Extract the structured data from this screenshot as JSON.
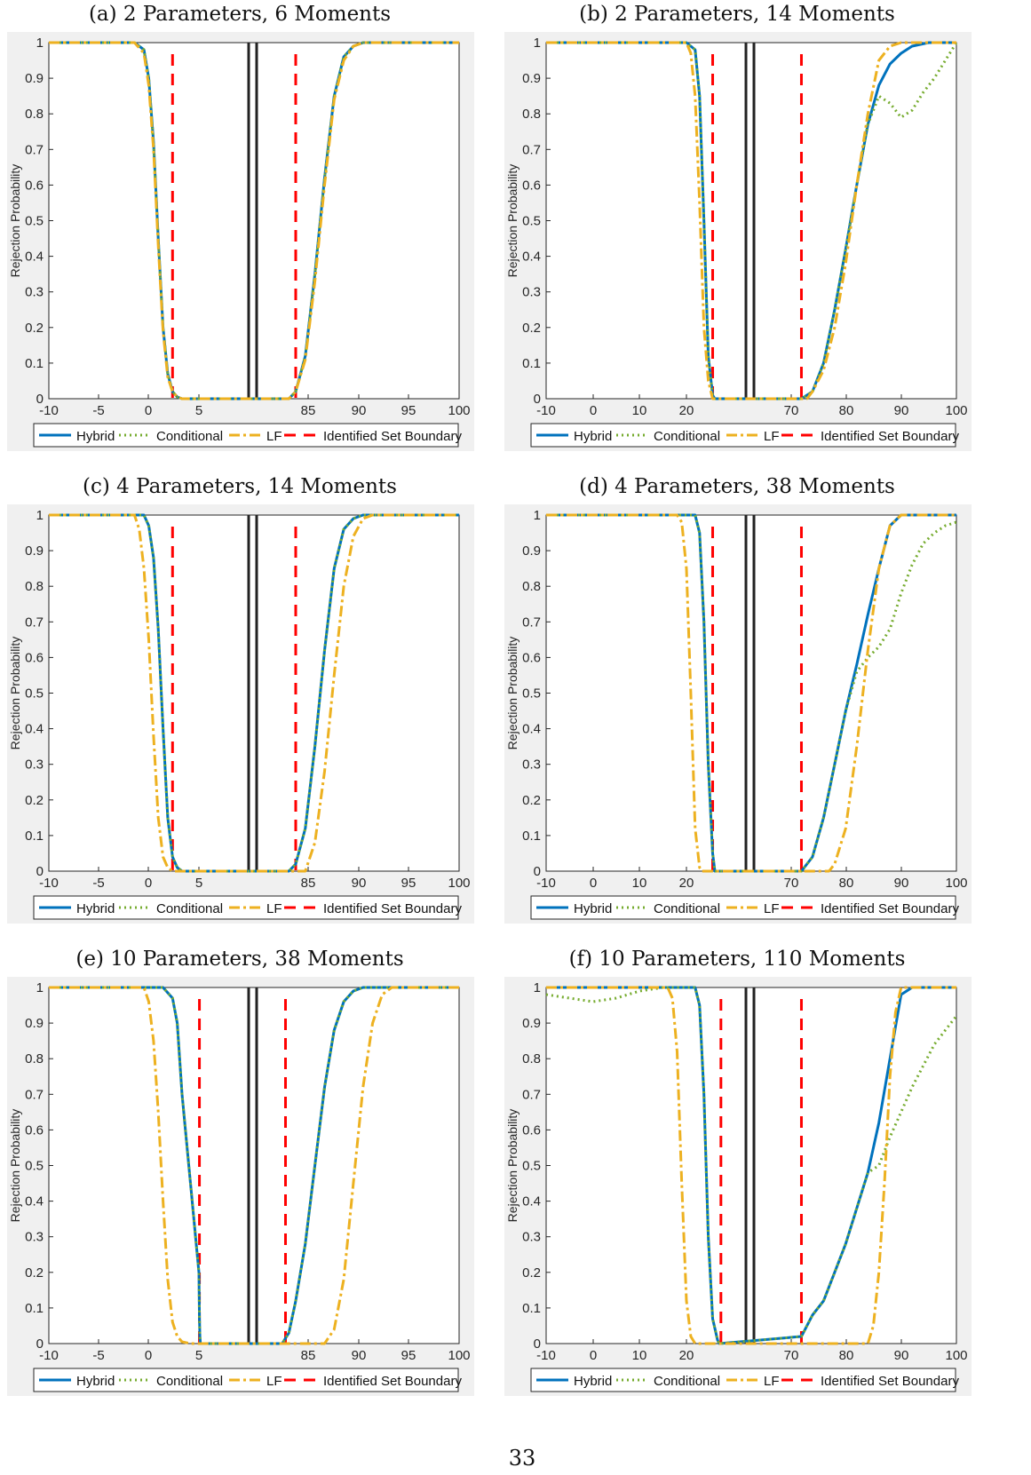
{
  "page_number": "33",
  "legend": [
    {
      "label": "Hybrid",
      "color": "#0072BD",
      "style": "solid"
    },
    {
      "label": "Conditional",
      "color": "#77AC30",
      "style": "dotted"
    },
    {
      "label": "LF",
      "color": "#EDB120",
      "style": "dashdot"
    },
    {
      "label": "Identified Set Boundary",
      "color": "#FF0000",
      "style": "dashed"
    }
  ],
  "true_value_line_color": "#222222",
  "chart_data": [
    {
      "type": "line",
      "title": "(a) 2 Parameters, 6 Moments",
      "ylabel": "Rejection Probability",
      "xlabel": "",
      "x_tick_labels": [
        "-10",
        "-5",
        "0",
        "5",
        "85",
        "90",
        "95",
        "100"
      ],
      "y_tick_labels": [
        "0",
        "0.1",
        "0.2",
        "0.3",
        "0.4",
        "0.5",
        "0.6",
        "0.7",
        "0.8",
        "0.9",
        "1"
      ],
      "ylim": [
        0,
        1
      ],
      "identified_set_boundary": [
        3,
        83
      ],
      "series": [
        {
          "name": "Hybrid",
          "x": [
            -10,
            -1,
            0,
            0.5,
            1,
            1.5,
            2,
            2.5,
            3,
            3.5,
            4,
            82,
            83,
            84,
            85,
            86,
            87,
            88,
            89,
            90,
            100
          ],
          "y": [
            1,
            1,
            0.98,
            0.9,
            0.72,
            0.45,
            0.2,
            0.07,
            0.02,
            0.005,
            0,
            0,
            0.02,
            0.12,
            0.35,
            0.62,
            0.85,
            0.96,
            0.99,
            1,
            1
          ]
        },
        {
          "name": "Conditional",
          "x": [
            -10,
            -1,
            0,
            0.5,
            1,
            1.5,
            2,
            2.5,
            3,
            3.5,
            4,
            82,
            83,
            84,
            85,
            86,
            87,
            88,
            89,
            90,
            100
          ],
          "y": [
            1,
            1,
            0.98,
            0.9,
            0.72,
            0.45,
            0.2,
            0.07,
            0.02,
            0.005,
            0,
            0,
            0.02,
            0.12,
            0.35,
            0.62,
            0.85,
            0.96,
            0.99,
            1,
            1
          ]
        },
        {
          "name": "LF",
          "x": [
            -10,
            -1,
            0,
            0.5,
            1,
            1.5,
            2,
            2.5,
            3,
            3.5,
            4,
            82,
            83,
            84,
            85,
            86,
            87,
            88,
            89,
            90,
            100
          ],
          "y": [
            1,
            1,
            0.97,
            0.88,
            0.7,
            0.43,
            0.19,
            0.06,
            0.02,
            0.005,
            0,
            0,
            0.02,
            0.11,
            0.33,
            0.6,
            0.84,
            0.95,
            0.99,
            1,
            1
          ]
        }
      ]
    },
    {
      "type": "line",
      "title": "(b) 2 Parameters, 14 Moments",
      "ylabel": "Rejection Probability",
      "xlabel": "",
      "x_tick_labels": [
        "-10",
        "0",
        "10",
        "20",
        "70",
        "80",
        "90",
        "100"
      ],
      "y_tick_labels": [
        "0",
        "0.1",
        "0.2",
        "0.3",
        "0.4",
        "0.5",
        "0.6",
        "0.7",
        "0.8",
        "0.9",
        "1"
      ],
      "ylim": [
        0,
        1
      ],
      "identified_set_boundary": [
        26,
        72
      ],
      "series": [
        {
          "name": "Hybrid",
          "x": [
            -10,
            20,
            22,
            23,
            24,
            25,
            26,
            26.5,
            72,
            74,
            76,
            78,
            80,
            82,
            84,
            86,
            88,
            90,
            92,
            95,
            100
          ],
          "y": [
            1,
            1,
            0.98,
            0.85,
            0.5,
            0.12,
            0.01,
            0,
            0,
            0.02,
            0.1,
            0.25,
            0.42,
            0.6,
            0.77,
            0.88,
            0.94,
            0.97,
            0.99,
            1,
            1
          ]
        },
        {
          "name": "Conditional",
          "x": [
            -10,
            20,
            22,
            23,
            24,
            25,
            26,
            26.5,
            72,
            74,
            76,
            78,
            80,
            82,
            84,
            86,
            88,
            90,
            92,
            94,
            96,
            98,
            100
          ],
          "y": [
            1,
            1,
            0.98,
            0.85,
            0.5,
            0.12,
            0.01,
            0,
            0,
            0.02,
            0.1,
            0.25,
            0.42,
            0.6,
            0.77,
            0.85,
            0.83,
            0.79,
            0.81,
            0.86,
            0.9,
            0.95,
            1
          ]
        },
        {
          "name": "LF",
          "x": [
            -10,
            20,
            21,
            22,
            23,
            24,
            25,
            26,
            73,
            74,
            76,
            78,
            80,
            82,
            84,
            86,
            88,
            90,
            100
          ],
          "y": [
            1,
            1,
            0.97,
            0.85,
            0.55,
            0.2,
            0.05,
            0,
            0,
            0.02,
            0.08,
            0.2,
            0.38,
            0.6,
            0.8,
            0.95,
            0.99,
            1,
            1
          ]
        }
      ]
    },
    {
      "type": "line",
      "title": "(c) 4 Parameters, 14 Moments",
      "ylabel": "Rejection Probability",
      "xlabel": "",
      "x_tick_labels": [
        "-10",
        "-5",
        "0",
        "5",
        "85",
        "90",
        "95",
        "100"
      ],
      "y_tick_labels": [
        "0",
        "0.1",
        "0.2",
        "0.3",
        "0.4",
        "0.5",
        "0.6",
        "0.7",
        "0.8",
        "0.9",
        "1"
      ],
      "ylim": [
        0,
        1
      ],
      "identified_set_boundary": [
        3,
        83
      ],
      "series": [
        {
          "name": "Hybrid",
          "x": [
            -10,
            0,
            0.5,
            1,
            1.5,
            2,
            2.5,
            3,
            3.5,
            4,
            82,
            83,
            84,
            85,
            86,
            87,
            88,
            89,
            90,
            100
          ],
          "y": [
            1,
            1,
            0.97,
            0.88,
            0.68,
            0.4,
            0.15,
            0.04,
            0.01,
            0,
            0,
            0.02,
            0.12,
            0.35,
            0.62,
            0.85,
            0.96,
            0.99,
            1,
            1
          ]
        },
        {
          "name": "Conditional",
          "x": [
            -10,
            0,
            0.5,
            1,
            1.5,
            2,
            2.5,
            3,
            3.5,
            4,
            82,
            83,
            84,
            85,
            86,
            87,
            88,
            89,
            90,
            100
          ],
          "y": [
            1,
            1,
            0.97,
            0.88,
            0.68,
            0.4,
            0.15,
            0.04,
            0.01,
            0,
            0,
            0.02,
            0.12,
            0.35,
            0.62,
            0.85,
            0.96,
            0.99,
            1,
            1
          ]
        },
        {
          "name": "LF",
          "x": [
            -10,
            -1,
            -0.5,
            0,
            0.5,
            1,
            1.5,
            2,
            2.5,
            3,
            84,
            85,
            86,
            87,
            88,
            89,
            90,
            91,
            92,
            100
          ],
          "y": [
            1,
            1,
            0.96,
            0.85,
            0.65,
            0.38,
            0.15,
            0.04,
            0.01,
            0,
            0,
            0.08,
            0.28,
            0.55,
            0.8,
            0.94,
            0.99,
            1,
            1,
            1
          ]
        }
      ]
    },
    {
      "type": "line",
      "title": "(d) 4 Parameters, 38 Moments",
      "ylabel": "Rejection Probability",
      "xlabel": "",
      "x_tick_labels": [
        "-10",
        "0",
        "10",
        "20",
        "70",
        "80",
        "90",
        "100"
      ],
      "y_tick_labels": [
        "0",
        "0.1",
        "0.2",
        "0.3",
        "0.4",
        "0.5",
        "0.6",
        "0.7",
        "0.8",
        "0.9",
        "1"
      ],
      "ylim": [
        0,
        1
      ],
      "identified_set_boundary": [
        26,
        72
      ],
      "series": [
        {
          "name": "Hybrid",
          "x": [
            -10,
            22,
            23,
            24,
            25,
            26,
            26.5,
            72,
            74,
            76,
            78,
            80,
            82,
            84,
            86,
            88,
            90,
            92,
            100
          ],
          "y": [
            1,
            1,
            0.95,
            0.7,
            0.3,
            0.05,
            0,
            0,
            0.04,
            0.15,
            0.3,
            0.45,
            0.58,
            0.72,
            0.85,
            0.97,
            1,
            1,
            1
          ]
        },
        {
          "name": "Conditional",
          "x": [
            -10,
            22,
            23,
            24,
            25,
            26,
            26.5,
            72,
            74,
            76,
            78,
            80,
            82,
            84,
            86,
            88,
            90,
            92,
            94,
            96,
            98,
            100
          ],
          "y": [
            1,
            1,
            0.95,
            0.7,
            0.3,
            0.05,
            0,
            0,
            0.04,
            0.15,
            0.3,
            0.45,
            0.56,
            0.6,
            0.63,
            0.68,
            0.78,
            0.86,
            0.92,
            0.95,
            0.97,
            0.98
          ]
        },
        {
          "name": "LF",
          "x": [
            -10,
            18,
            19,
            20,
            21,
            22,
            23,
            23.5,
            77,
            78,
            80,
            82,
            84,
            86,
            88,
            90,
            100
          ],
          "y": [
            1,
            1,
            0.98,
            0.85,
            0.5,
            0.12,
            0.01,
            0,
            0,
            0.02,
            0.12,
            0.35,
            0.62,
            0.85,
            0.97,
            1,
            1
          ]
        }
      ]
    },
    {
      "type": "line",
      "title": "(e) 10 Parameters, 38 Moments",
      "ylabel": "Rejection Probability",
      "xlabel": "",
      "x_tick_labels": [
        "-10",
        "-5",
        "0",
        "5",
        "85",
        "90",
        "95",
        "100"
      ],
      "y_tick_labels": [
        "0",
        "0.1",
        "0.2",
        "0.3",
        "0.4",
        "0.5",
        "0.6",
        "0.7",
        "0.8",
        "0.9",
        "1"
      ],
      "ylim": [
        0,
        1
      ],
      "identified_set_boundary": [
        5.5,
        81.5
      ],
      "series": [
        {
          "name": "Hybrid",
          "x": [
            -10,
            2,
            3,
            3.5,
            4,
            4.5,
            5,
            5.5,
            6,
            6.5,
            81,
            82,
            83,
            84,
            85,
            86,
            87,
            88,
            89,
            90,
            100
          ],
          "y": [
            1,
            1,
            0.97,
            0.9,
            0.7,
            0.45,
            0.2,
            0.07,
            0.02,
            0,
            0,
            0.03,
            0.12,
            0.28,
            0.5,
            0.72,
            0.88,
            0.96,
            0.99,
            1,
            1
          ]
        },
        {
          "name": "Conditional",
          "x": [
            -10,
            2,
            3,
            3.5,
            4,
            4.5,
            5,
            5.5,
            6,
            6.5,
            81,
            82,
            83,
            84,
            85,
            86,
            87,
            88,
            89,
            90,
            100
          ],
          "y": [
            1,
            1,
            0.97,
            0.9,
            0.7,
            0.45,
            0.2,
            0.07,
            0.02,
            0,
            0,
            0.03,
            0.12,
            0.28,
            0.5,
            0.72,
            0.88,
            0.96,
            0.99,
            1,
            1
          ]
        },
        {
          "name": "LF",
          "x": [
            -10,
            0,
            0.5,
            1,
            1.5,
            2,
            2.5,
            3,
            3.5,
            4,
            4.5,
            86,
            87,
            88,
            89,
            90,
            91,
            92,
            93,
            100
          ],
          "y": [
            1,
            1,
            0.96,
            0.85,
            0.65,
            0.4,
            0.18,
            0.06,
            0.02,
            0.005,
            0,
            0,
            0.04,
            0.18,
            0.45,
            0.72,
            0.9,
            0.98,
            1,
            1
          ]
        }
      ]
    },
    {
      "type": "line",
      "title": "(f) 10 Parameters, 110 Moments",
      "ylabel": "Rejection Probability",
      "xlabel": "",
      "x_tick_labels": [
        "-10",
        "0",
        "10",
        "20",
        "70",
        "80",
        "90",
        "100"
      ],
      "y_tick_labels": [
        "0",
        "0.1",
        "0.2",
        "0.3",
        "0.4",
        "0.5",
        "0.6",
        "0.7",
        "0.8",
        "0.9",
        "1"
      ],
      "ylim": [
        0,
        1
      ],
      "identified_set_boundary": [
        29,
        72
      ],
      "series": [
        {
          "name": "Hybrid",
          "x": [
            -10,
            22,
            23,
            24,
            25,
            26,
            27,
            28,
            72,
            73,
            74,
            76,
            78,
            80,
            82,
            84,
            86,
            88,
            90,
            92,
            100
          ],
          "y": [
            1,
            1,
            0.95,
            0.7,
            0.3,
            0.07,
            0.01,
            0,
            0.02,
            0.05,
            0.08,
            0.12,
            0.2,
            0.28,
            0.38,
            0.48,
            0.62,
            0.8,
            0.98,
            1,
            1
          ]
        },
        {
          "name": "Conditional",
          "x": [
            -10,
            -5,
            0,
            5,
            10,
            15,
            20,
            22,
            23,
            24,
            25,
            26,
            27,
            28,
            72,
            73,
            74,
            76,
            78,
            80,
            82,
            84,
            86,
            88,
            90,
            92,
            94,
            96,
            98,
            100
          ],
          "y": [
            0.98,
            0.97,
            0.96,
            0.97,
            0.99,
            1,
            1,
            1,
            0.95,
            0.7,
            0.3,
            0.07,
            0.01,
            0,
            0.02,
            0.05,
            0.08,
            0.12,
            0.2,
            0.28,
            0.38,
            0.48,
            0.5,
            0.58,
            0.65,
            0.72,
            0.78,
            0.84,
            0.88,
            0.92
          ]
        },
        {
          "name": "LF",
          "x": [
            -10,
            16,
            17,
            18,
            19,
            20,
            21,
            22,
            84,
            85,
            86,
            87,
            88,
            89,
            90,
            100
          ],
          "y": [
            1,
            1,
            0.97,
            0.82,
            0.45,
            0.12,
            0.02,
            0,
            0,
            0.05,
            0.2,
            0.45,
            0.75,
            0.93,
            1,
            1
          ]
        }
      ]
    }
  ]
}
